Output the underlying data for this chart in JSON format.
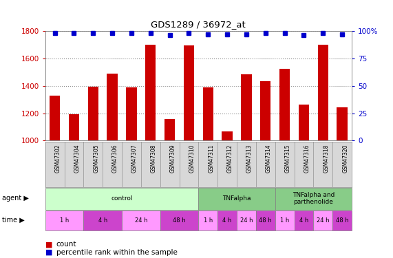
{
  "title": "GDS1289 / 36972_at",
  "samples": [
    "GSM47302",
    "GSM47304",
    "GSM47305",
    "GSM47306",
    "GSM47307",
    "GSM47308",
    "GSM47309",
    "GSM47310",
    "GSM47311",
    "GSM47312",
    "GSM47313",
    "GSM47314",
    "GSM47315",
    "GSM47316",
    "GSM47318",
    "GSM47320"
  ],
  "bar_values": [
    1330,
    1195,
    1395,
    1490,
    1390,
    1700,
    1155,
    1695,
    1390,
    1065,
    1485,
    1435,
    1525,
    1265,
    1700,
    1245
  ],
  "percentile_values": [
    98,
    98,
    98,
    98,
    98,
    98,
    96,
    98,
    97,
    97,
    97,
    98,
    98,
    96,
    98,
    97
  ],
  "bar_color": "#cc0000",
  "dot_color": "#0000cc",
  "ylim_left": [
    1000,
    1800
  ],
  "ylim_right": [
    0,
    100
  ],
  "yticks_left": [
    1000,
    1200,
    1400,
    1600,
    1800
  ],
  "yticks_right": [
    0,
    25,
    50,
    75,
    100
  ],
  "ytick_right_labels": [
    "0",
    "25",
    "50",
    "75",
    "100%"
  ],
  "agent_groups": [
    {
      "label": "control",
      "start": 0,
      "end": 8,
      "color": "#ccffcc"
    },
    {
      "label": "TNFalpha",
      "start": 8,
      "end": 12,
      "color": "#88cc88"
    },
    {
      "label": "TNFalpha and\nparthenolide",
      "start": 12,
      "end": 16,
      "color": "#88cc88"
    }
  ],
  "time_groups": [
    {
      "label": "1 h",
      "start": 0,
      "end": 2,
      "color": "#ff99ff"
    },
    {
      "label": "4 h",
      "start": 2,
      "end": 4,
      "color": "#cc44cc"
    },
    {
      "label": "24 h",
      "start": 4,
      "end": 6,
      "color": "#ff99ff"
    },
    {
      "label": "48 h",
      "start": 6,
      "end": 8,
      "color": "#cc44cc"
    },
    {
      "label": "1 h",
      "start": 8,
      "end": 9,
      "color": "#ff99ff"
    },
    {
      "label": "4 h",
      "start": 9,
      "end": 10,
      "color": "#cc44cc"
    },
    {
      "label": "24 h",
      "start": 10,
      "end": 11,
      "color": "#ff99ff"
    },
    {
      "label": "48 h",
      "start": 11,
      "end": 12,
      "color": "#cc44cc"
    },
    {
      "label": "1 h",
      "start": 12,
      "end": 13,
      "color": "#ff99ff"
    },
    {
      "label": "4 h",
      "start": 13,
      "end": 14,
      "color": "#cc44cc"
    },
    {
      "label": "24 h",
      "start": 14,
      "end": 15,
      "color": "#ff99ff"
    },
    {
      "label": "48 h",
      "start": 15,
      "end": 16,
      "color": "#cc44cc"
    }
  ],
  "legend_count_color": "#cc0000",
  "legend_dot_color": "#0000cc",
  "background_color": "#d8d8d8",
  "plot_bg": "#ffffff",
  "grid_color": "#888888"
}
